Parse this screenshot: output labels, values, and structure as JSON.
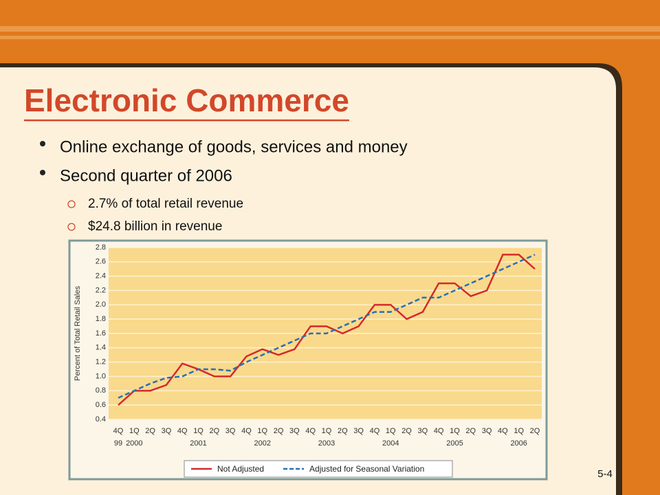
{
  "title": "Electronic Commerce",
  "bullets": [
    {
      "text": "Online exchange of goods, services and money"
    },
    {
      "text": "Second quarter of 2006",
      "sub": [
        "2.7% of total retail revenue",
        "$24.8 billion in revenue"
      ]
    }
  ],
  "page_number": "5-4",
  "chart_data": {
    "type": "line",
    "y_label": "Percent of Total Retail Sales",
    "categories": [
      "4Q",
      "1Q",
      "2Q",
      "3Q",
      "4Q",
      "1Q",
      "2Q",
      "3Q",
      "4Q",
      "1Q",
      "2Q",
      "3Q",
      "4Q",
      "1Q",
      "2Q",
      "3Q",
      "4Q",
      "1Q",
      "2Q",
      "3Q",
      "4Q",
      "1Q",
      "2Q",
      "3Q",
      "4Q",
      "1Q",
      "2Q"
    ],
    "category_years": [
      "99",
      "2000",
      null,
      null,
      null,
      "2001",
      null,
      null,
      null,
      "2002",
      null,
      null,
      null,
      "2003",
      null,
      null,
      null,
      "2004",
      null,
      null,
      null,
      "2005",
      null,
      null,
      null,
      "2006",
      null
    ],
    "series": [
      {
        "name": "Not Adjusted",
        "color": "#d42a2a",
        "dash": false,
        "values": [
          0.6,
          0.8,
          0.8,
          0.88,
          1.18,
          1.1,
          1.0,
          1.0,
          1.28,
          1.38,
          1.3,
          1.38,
          1.7,
          1.7,
          1.6,
          1.7,
          2.0,
          2.0,
          1.8,
          1.9,
          2.3,
          2.3,
          2.12,
          2.2,
          2.7,
          2.7,
          2.5
        ]
      },
      {
        "name": "Adjusted for Seasonal Variation",
        "color": "#2a6fb0",
        "dash": true,
        "values": [
          0.7,
          0.8,
          0.9,
          0.98,
          1.0,
          1.1,
          1.1,
          1.08,
          1.2,
          1.3,
          1.4,
          1.5,
          1.6,
          1.6,
          1.7,
          1.8,
          1.9,
          1.9,
          2.0,
          2.1,
          2.1,
          2.2,
          2.3,
          2.4,
          2.5,
          2.6,
          2.7
        ]
      }
    ],
    "ylim": [
      0.4,
      2.8
    ],
    "yticks": [
      0.4,
      0.6,
      0.8,
      {
        "value": 1.0,
        "label": "1.0"
      },
      1.2,
      1.4,
      1.6,
      1.8,
      {
        "value": 2.0,
        "label": "2.0"
      },
      2.2,
      2.4,
      2.6,
      2.8
    ],
    "grid": true,
    "legend": "bottom"
  }
}
